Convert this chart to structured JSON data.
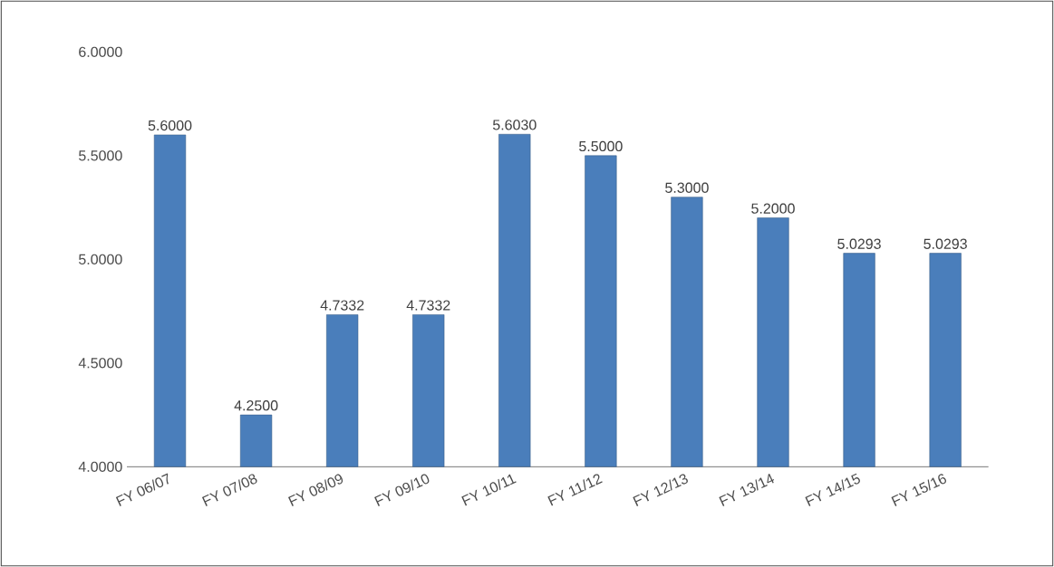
{
  "chart_data": {
    "type": "bar",
    "categories": [
      "FY 06/07",
      "FY 07/08",
      "FY 08/09",
      "FY 09/10",
      "FY 10/11",
      "FY 11/12",
      "FY 12/13",
      "FY 13/14",
      "FY 14/15",
      "FY 15/16"
    ],
    "values": [
      5.6,
      4.25,
      4.7332,
      4.7332,
      5.603,
      5.5,
      5.3,
      5.2,
      5.0293,
      5.0293
    ],
    "value_labels": [
      "5.6000",
      "4.2500",
      "4.7332",
      "4.7332",
      "5.6030",
      "5.5000",
      "5.3000",
      "5.2000",
      "5.0293",
      "5.0293"
    ],
    "color": "#4a7ebb",
    "ylim": [
      4,
      6
    ],
    "yticks": [
      {
        "value": 4,
        "label": "4.0000"
      },
      {
        "value": 4.5,
        "label": "4.5000"
      },
      {
        "value": 5,
        "label": "5.0000"
      },
      {
        "value": 5.5,
        "label": "5.5000"
      },
      {
        "value": 6,
        "label": "6.0000"
      }
    ]
  }
}
